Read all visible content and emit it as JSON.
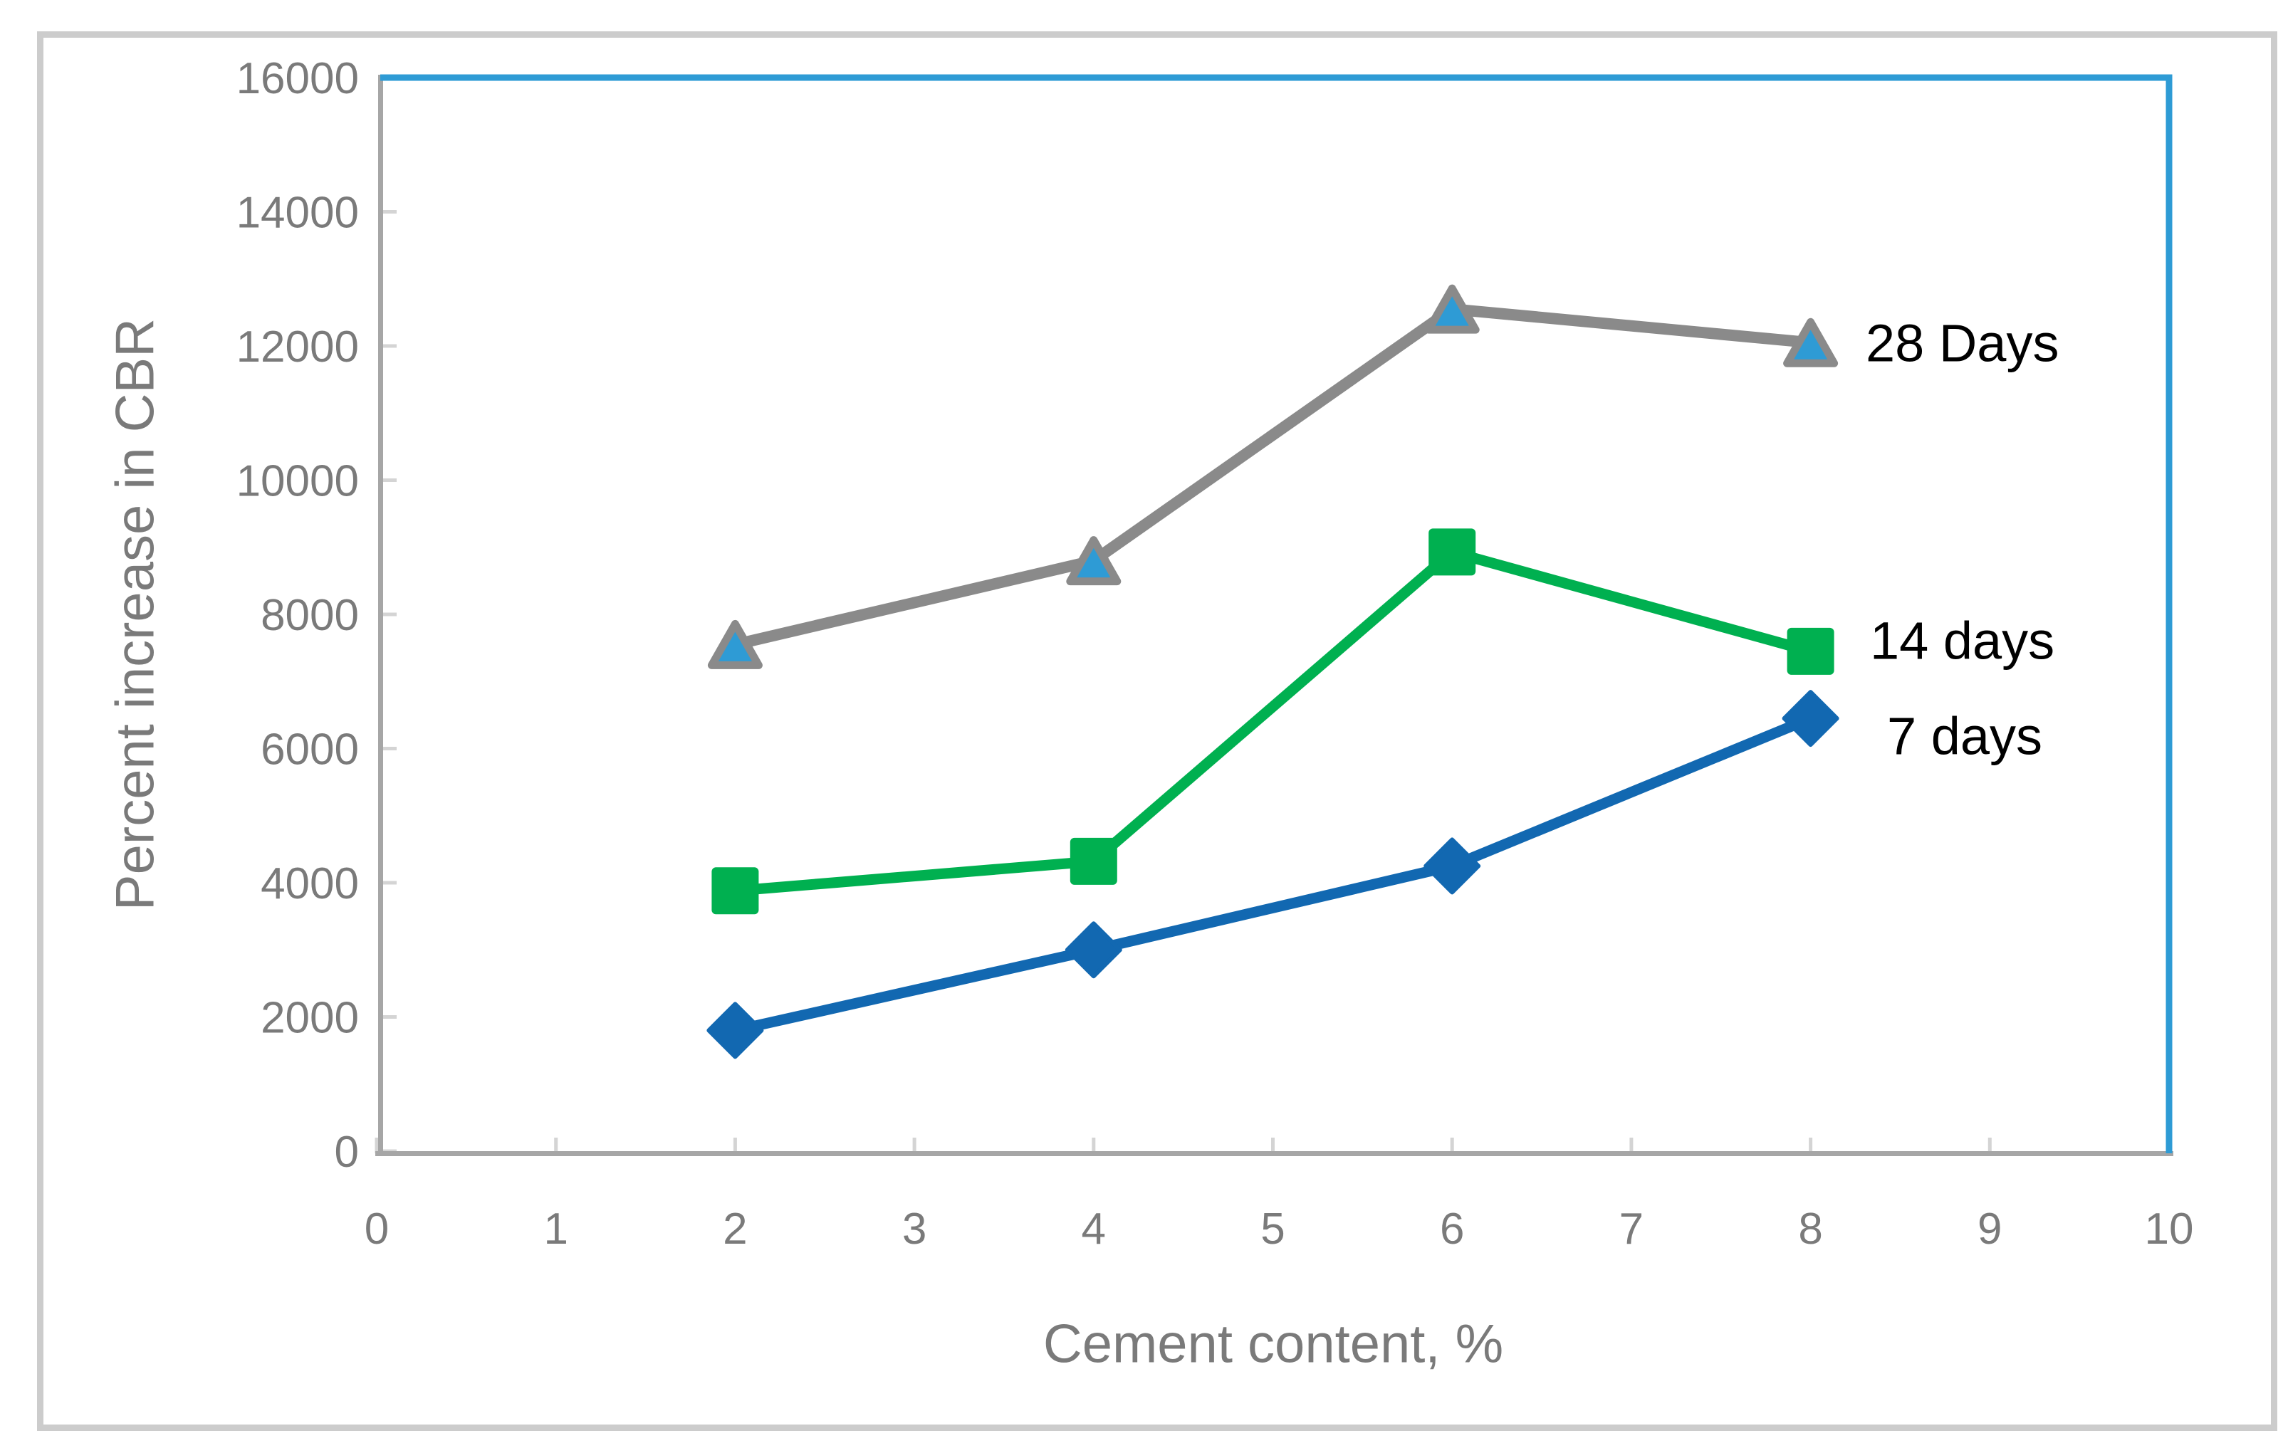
{
  "figure": {
    "background": "#ffffff",
    "frame_color": "#cccccc"
  },
  "chart_data": {
    "type": "line",
    "title": "",
    "xlabel": "Cement content, %",
    "ylabel": "Percent increase in CBR",
    "xlim": [
      0,
      10
    ],
    "ylim": [
      0,
      16000
    ],
    "x_ticks": [
      0,
      1,
      2,
      3,
      4,
      5,
      6,
      7,
      8,
      9,
      10
    ],
    "y_ticks": [
      0,
      2000,
      4000,
      6000,
      8000,
      10000,
      12000,
      14000,
      16000
    ],
    "x": [
      2,
      4,
      6,
      8
    ],
    "series": [
      {
        "name": "28 Days",
        "values": [
          7550,
          8800,
          12550,
          12050
        ],
        "line_color": "#8a8a8a",
        "marker": "triangle",
        "marker_fill": "#2e9bd5",
        "marker_stroke": "#8a8a8a"
      },
      {
        "name": "14 days",
        "values": [
          3880,
          4320,
          8930,
          7450
        ],
        "line_color": "#00b050",
        "marker": "square",
        "marker_fill": "#00b050",
        "marker_stroke": "#00b050"
      },
      {
        "name": "7 days",
        "values": [
          1800,
          3000,
          4250,
          6450
        ],
        "line_color": "#1268b1",
        "marker": "diamond",
        "marker_fill": "#1268b1",
        "marker_stroke": "#1268b1"
      }
    ],
    "grid": false,
    "legend_position": "labels-at-line-ends",
    "plot_border_color": "#2e9bd5",
    "axis_line_color": "#a6a6a6",
    "tick_color": "#d4d4d4",
    "tick_label_color": "#7a7a7a",
    "axis_title_color": "#7a7a7a",
    "series_label_color": "#000000"
  }
}
